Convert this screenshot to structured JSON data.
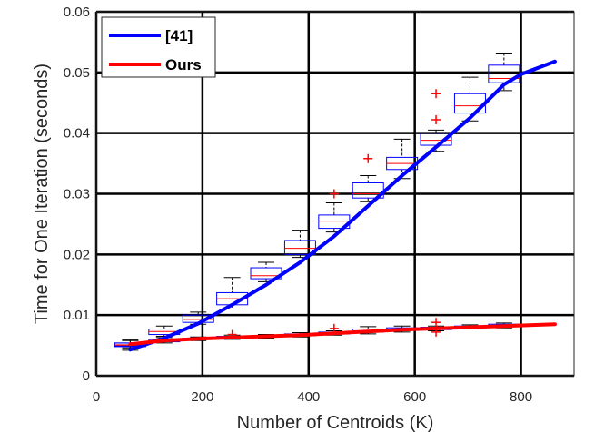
{
  "chart_data": {
    "type": "line",
    "title": "",
    "xlabel": "Number of Centroids (K)",
    "ylabel": "Time for One Iteration (seconds)",
    "xlim": [
      0,
      900
    ],
    "ylim": [
      0,
      0.06
    ],
    "x_ticks": [
      "0",
      "200",
      "400",
      "600",
      "800"
    ],
    "x_tick_values": [
      0,
      200,
      400,
      600,
      800
    ],
    "y_ticks": [
      "0",
      "0.01",
      "0.02",
      "0.03",
      "0.04",
      "0.05",
      "0.06"
    ],
    "y_tick_values": [
      0,
      0.01,
      0.02,
      0.03,
      0.04,
      0.05,
      0.06
    ],
    "grid": true,
    "legend_position": "top-left",
    "series": [
      {
        "name": "[41]",
        "color": "#0000ff",
        "x": [
          64,
          128,
          192,
          256,
          320,
          384,
          448,
          512,
          576,
          640,
          704,
          768,
          800,
          864
        ],
        "y": [
          0.0043,
          0.0062,
          0.0086,
          0.0117,
          0.015,
          0.0187,
          0.023,
          0.028,
          0.033,
          0.0377,
          0.0425,
          0.048,
          0.0497,
          0.0518
        ]
      },
      {
        "name": "Ours",
        "color": "#ff0000",
        "x": [
          64,
          128,
          192,
          256,
          320,
          384,
          448,
          512,
          576,
          640,
          704,
          768,
          864
        ],
        "y": [
          0.0052,
          0.0058,
          0.0061,
          0.0063,
          0.0065,
          0.0067,
          0.007,
          0.0073,
          0.0076,
          0.0078,
          0.008,
          0.0082,
          0.0085
        ]
      }
    ],
    "boxplots": [
      {
        "series": "[41]",
        "x": 64,
        "whisker_low": 0.0042,
        "q1": 0.0048,
        "median": 0.005,
        "q3": 0.0054,
        "whisker_high": 0.0058,
        "outliers": []
      },
      {
        "series": "[41]",
        "x": 128,
        "whisker_low": 0.0065,
        "q1": 0.0068,
        "median": 0.0073,
        "q3": 0.0077,
        "whisker_high": 0.0082,
        "outliers": []
      },
      {
        "series": "[41]",
        "x": 192,
        "whisker_low": 0.0085,
        "q1": 0.0088,
        "median": 0.0093,
        "q3": 0.01,
        "whisker_high": 0.0105,
        "outliers": []
      },
      {
        "series": "[41]",
        "x": 256,
        "whisker_low": 0.011,
        "q1": 0.0117,
        "median": 0.0127,
        "q3": 0.0137,
        "whisker_high": 0.0162,
        "outliers": []
      },
      {
        "series": "[41]",
        "x": 320,
        "whisker_low": 0.0155,
        "q1": 0.016,
        "median": 0.0165,
        "q3": 0.0178,
        "whisker_high": 0.0187,
        "outliers": []
      },
      {
        "series": "[41]",
        "x": 384,
        "whisker_low": 0.0195,
        "q1": 0.02,
        "median": 0.021,
        "q3": 0.0223,
        "whisker_high": 0.024,
        "outliers": []
      },
      {
        "series": "[41]",
        "x": 448,
        "whisker_low": 0.0237,
        "q1": 0.0243,
        "median": 0.0255,
        "q3": 0.0265,
        "whisker_high": 0.0285,
        "outliers": [
          0.03
        ]
      },
      {
        "series": "[41]",
        "x": 512,
        "whisker_low": 0.0287,
        "q1": 0.0293,
        "median": 0.03,
        "q3": 0.0318,
        "whisker_high": 0.033,
        "outliers": [
          0.0358
        ]
      },
      {
        "series": "[41]",
        "x": 576,
        "whisker_low": 0.0325,
        "q1": 0.034,
        "median": 0.035,
        "q3": 0.036,
        "whisker_high": 0.039,
        "outliers": []
      },
      {
        "series": "[41]",
        "x": 640,
        "whisker_low": 0.037,
        "q1": 0.038,
        "median": 0.0388,
        "q3": 0.04,
        "whisker_high": 0.0405,
        "outliers": [
          0.0422,
          0.0465
        ]
      },
      {
        "series": "[41]",
        "x": 704,
        "whisker_low": 0.042,
        "q1": 0.0433,
        "median": 0.0445,
        "q3": 0.0465,
        "whisker_high": 0.0492,
        "outliers": []
      },
      {
        "series": "[41]",
        "x": 768,
        "whisker_low": 0.047,
        "q1": 0.0483,
        "median": 0.049,
        "q3": 0.0512,
        "whisker_high": 0.0532,
        "outliers": []
      },
      {
        "series": "Ours",
        "x": 64,
        "whisker_low": 0.0046,
        "q1": 0.0049,
        "median": 0.0051,
        "q3": 0.0054,
        "whisker_high": 0.0059,
        "outliers": []
      },
      {
        "series": "Ours",
        "x": 128,
        "whisker_low": 0.0054,
        "q1": 0.0056,
        "median": 0.0058,
        "q3": 0.006,
        "whisker_high": 0.0063,
        "outliers": []
      },
      {
        "series": "Ours",
        "x": 192,
        "whisker_low": 0.0058,
        "q1": 0.006,
        "median": 0.0061,
        "q3": 0.0062,
        "whisker_high": 0.0064,
        "outliers": []
      },
      {
        "series": "Ours",
        "x": 256,
        "whisker_low": 0.006,
        "q1": 0.0062,
        "median": 0.0063,
        "q3": 0.0065,
        "whisker_high": 0.0067,
        "outliers": [
          0.0068
        ]
      },
      {
        "series": "Ours",
        "x": 320,
        "whisker_low": 0.0062,
        "q1": 0.0064,
        "median": 0.0065,
        "q3": 0.0066,
        "whisker_high": 0.0068,
        "outliers": []
      },
      {
        "series": "Ours",
        "x": 384,
        "whisker_low": 0.0064,
        "q1": 0.0066,
        "median": 0.0067,
        "q3": 0.0069,
        "whisker_high": 0.0071,
        "outliers": []
      },
      {
        "series": "Ours",
        "x": 448,
        "whisker_low": 0.0067,
        "q1": 0.0069,
        "median": 0.007,
        "q3": 0.0072,
        "whisker_high": 0.0074,
        "outliers": [
          0.0078
        ]
      },
      {
        "series": "Ours",
        "x": 512,
        "whisker_low": 0.0069,
        "q1": 0.0072,
        "median": 0.0074,
        "q3": 0.0077,
        "whisker_high": 0.0081,
        "outliers": []
      },
      {
        "series": "Ours",
        "x": 576,
        "whisker_low": 0.0072,
        "q1": 0.0075,
        "median": 0.0077,
        "q3": 0.0079,
        "whisker_high": 0.0082,
        "outliers": []
      },
      {
        "series": "Ours",
        "x": 640,
        "whisker_low": 0.0074,
        "q1": 0.0076,
        "median": 0.0078,
        "q3": 0.008,
        "whisker_high": 0.0082,
        "outliers": [
          0.0088,
          0.0072
        ]
      },
      {
        "series": "Ours",
        "x": 704,
        "whisker_low": 0.0077,
        "q1": 0.0079,
        "median": 0.008,
        "q3": 0.0082,
        "whisker_high": 0.0084,
        "outliers": []
      },
      {
        "series": "Ours",
        "x": 768,
        "whisker_low": 0.0079,
        "q1": 0.0081,
        "median": 0.0083,
        "q3": 0.0085,
        "whisker_high": 0.0087,
        "outliers": []
      }
    ]
  }
}
